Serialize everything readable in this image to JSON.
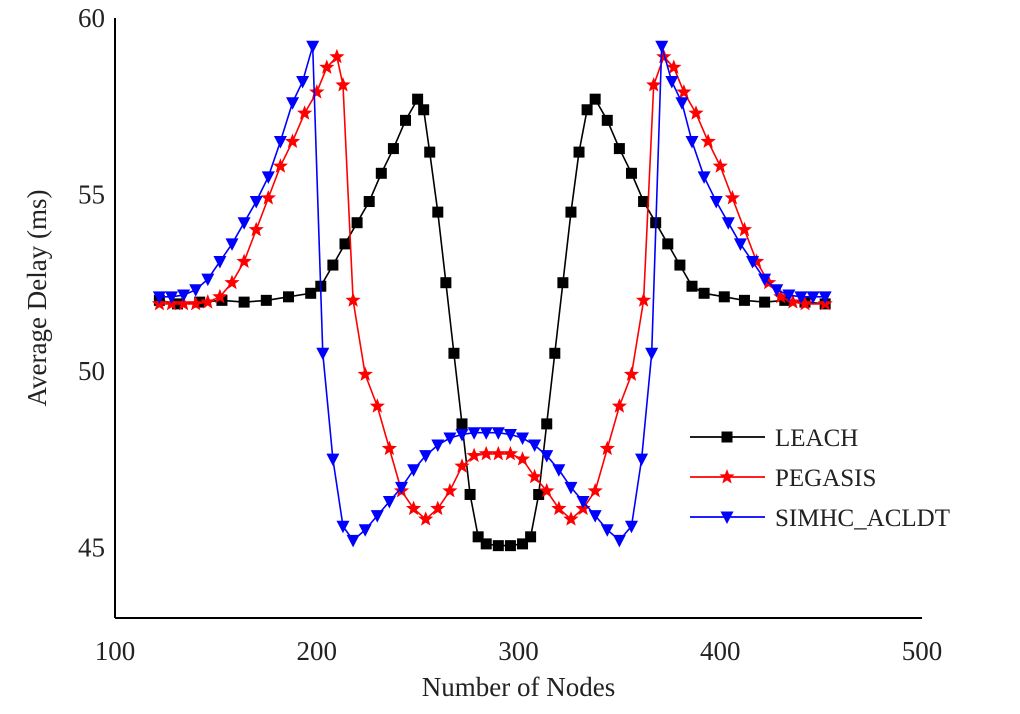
{
  "chart_data": {
    "type": "line",
    "xlabel": "Number of Nodes",
    "ylabel": "Average Delay (ms)",
    "xlim": [
      100,
      500
    ],
    "ylim": [
      43,
      60
    ],
    "xticks": [
      "100",
      "200",
      "300",
      "400",
      "500"
    ],
    "yticks": [
      "45",
      "50",
      "55",
      "60"
    ],
    "grid": false,
    "legend_position": "bottom-right",
    "series": [
      {
        "name": "LEACH",
        "color": "#000000",
        "marker": "square",
        "x": [
          122,
          131,
          142,
          153,
          164,
          175,
          186,
          197,
          202,
          208,
          214,
          220,
          226,
          232,
          238,
          244,
          250,
          253,
          256,
          260,
          264,
          268,
          272,
          276,
          280,
          284,
          290,
          296,
          302,
          306,
          310,
          314,
          318,
          322,
          326,
          330,
          334,
          338,
          344,
          350,
          356,
          362,
          368,
          374,
          380,
          386,
          392,
          402,
          412,
          422,
          432,
          442,
          452
        ],
        "y": [
          52.0,
          51.9,
          51.95,
          52.0,
          51.95,
          52.0,
          52.1,
          52.2,
          52.4,
          53.0,
          53.6,
          54.2,
          54.8,
          55.6,
          56.3,
          57.1,
          57.7,
          57.4,
          56.2,
          54.5,
          52.5,
          50.5,
          48.5,
          46.5,
          45.3,
          45.1,
          45.05,
          45.05,
          45.1,
          45.3,
          46.5,
          48.5,
          50.5,
          52.5,
          54.5,
          56.2,
          57.4,
          57.7,
          57.1,
          56.3,
          55.6,
          54.8,
          54.2,
          53.6,
          53.0,
          52.4,
          52.2,
          52.1,
          52.0,
          51.95,
          52.0,
          51.95,
          51.9
        ]
      },
      {
        "name": "PEGASIS",
        "color": "#ff0000",
        "marker": "star",
        "x": [
          122,
          128,
          134,
          140,
          146,
          152,
          158,
          164,
          170,
          176,
          182,
          188,
          194,
          200,
          205,
          210,
          213,
          218,
          224,
          230,
          236,
          242,
          248,
          254,
          260,
          266,
          272,
          278,
          284,
          290,
          296,
          302,
          308,
          314,
          320,
          326,
          332,
          338,
          344,
          350,
          356,
          362,
          367,
          372,
          377,
          382,
          388,
          394,
          400,
          406,
          412,
          418,
          424,
          430,
          436,
          442,
          452
        ],
        "y": [
          51.9,
          51.9,
          51.9,
          51.9,
          51.95,
          52.1,
          52.5,
          53.1,
          54.0,
          54.9,
          55.8,
          56.5,
          57.3,
          57.9,
          58.6,
          58.9,
          58.1,
          52.0,
          49.9,
          49.0,
          47.8,
          46.6,
          46.1,
          45.8,
          46.1,
          46.6,
          47.3,
          47.6,
          47.65,
          47.65,
          47.65,
          47.5,
          47.0,
          46.6,
          46.1,
          45.8,
          46.1,
          46.6,
          47.8,
          49.0,
          49.9,
          52.0,
          58.1,
          58.9,
          58.6,
          57.9,
          57.3,
          56.5,
          55.8,
          54.9,
          54.0,
          53.1,
          52.5,
          52.1,
          51.95,
          51.9,
          51.9
        ]
      },
      {
        "name": "SIMHC_ACLDT",
        "color": "#0000ff",
        "marker": "triangle-down",
        "x": [
          122,
          128,
          134,
          140,
          146,
          152,
          158,
          164,
          170,
          176,
          182,
          188,
          193,
          198,
          203,
          208,
          213,
          218,
          224,
          230,
          236,
          242,
          248,
          254,
          260,
          266,
          272,
          278,
          284,
          290,
          296,
          302,
          308,
          314,
          320,
          326,
          332,
          338,
          344,
          350,
          356,
          361,
          366,
          371,
          376,
          381,
          386,
          392,
          398,
          404,
          410,
          416,
          422,
          428,
          434,
          440,
          446,
          452
        ],
        "y": [
          52.1,
          52.1,
          52.15,
          52.3,
          52.6,
          53.1,
          53.6,
          54.2,
          54.8,
          55.5,
          56.5,
          57.6,
          58.2,
          59.2,
          50.5,
          47.5,
          45.6,
          45.2,
          45.5,
          45.9,
          46.3,
          46.7,
          47.2,
          47.6,
          47.9,
          48.1,
          48.2,
          48.25,
          48.25,
          48.25,
          48.2,
          48.1,
          47.9,
          47.6,
          47.2,
          46.7,
          46.3,
          45.9,
          45.5,
          45.2,
          45.6,
          47.5,
          50.5,
          59.2,
          58.2,
          57.6,
          56.5,
          55.5,
          54.8,
          54.2,
          53.6,
          53.1,
          52.6,
          52.3,
          52.15,
          52.1,
          52.1,
          52.1
        ]
      }
    ]
  }
}
